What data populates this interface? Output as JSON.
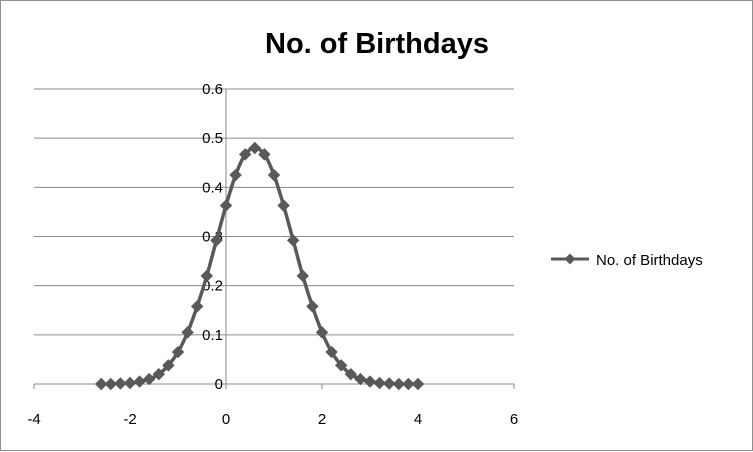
{
  "chart_data": {
    "type": "scatter",
    "title": "No. of Birthdays",
    "xlabel": "",
    "ylabel": "",
    "xlim": [
      -4,
      6
    ],
    "ylim": [
      0,
      0.6
    ],
    "x_ticks": [
      "-4",
      "-2",
      "0",
      "2",
      "4",
      "6"
    ],
    "y_ticks": [
      "0",
      "0.1",
      "0.2",
      "0.3",
      "0.4",
      "0.5",
      "0.6"
    ],
    "grid": "horizontal major gridlines",
    "legend_position": "right",
    "series": [
      {
        "name": "No. of Birthdays",
        "color": "#595959",
        "marker": "diamond",
        "line": "smooth",
        "x": [
          -2.6,
          -2.4,
          -2.2,
          -2.0,
          -1.8,
          -1.6,
          -1.4,
          -1.2,
          -1.0,
          -0.8,
          -0.6,
          -0.4,
          -0.2,
          0.0,
          0.2,
          0.4,
          0.6,
          0.8,
          1.0,
          1.2,
          1.4,
          1.6,
          1.8,
          2.0,
          2.2,
          2.4,
          2.6,
          2.8,
          3.0,
          3.2,
          3.4,
          3.6,
          3.8,
          4.0
        ],
        "y": [
          0.0,
          0.0,
          0.001,
          0.002,
          0.005,
          0.01,
          0.02,
          0.038,
          0.065,
          0.105,
          0.158,
          0.22,
          0.292,
          0.363,
          0.425,
          0.467,
          0.48,
          0.467,
          0.425,
          0.363,
          0.292,
          0.22,
          0.158,
          0.105,
          0.065,
          0.038,
          0.02,
          0.01,
          0.005,
          0.002,
          0.001,
          0.0,
          0.0,
          0.0
        ]
      }
    ]
  }
}
